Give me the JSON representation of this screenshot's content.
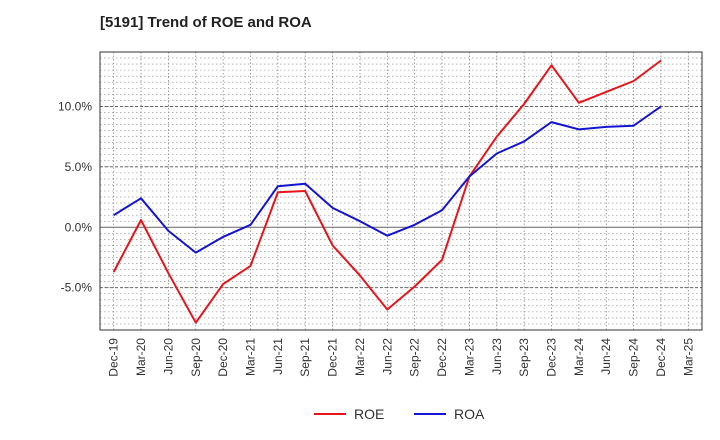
{
  "chart_data": {
    "type": "line",
    "title": "[5191]  Trend of ROE and ROA",
    "xlabel": "",
    "ylabel": "",
    "x": [
      "Dec-19",
      "Mar-20",
      "Jun-20",
      "Sep-20",
      "Dec-20",
      "Mar-21",
      "Jun-21",
      "Sep-21",
      "Dec-21",
      "Mar-22",
      "Jun-22",
      "Sep-22",
      "Dec-22",
      "Mar-23",
      "Jun-23",
      "Sep-23",
      "Dec-23",
      "Mar-24",
      "Jun-24",
      "Sep-24",
      "Dec-24",
      "Mar-25"
    ],
    "ylim": [
      -8.5,
      14.5
    ],
    "yticks": [
      -5,
      0,
      5,
      10
    ],
    "ytick_labels": [
      "-5.0%",
      "0.0%",
      "5.0%",
      "10.0%"
    ],
    "grid": true,
    "legend_position": "bottom-center",
    "series": [
      {
        "name": "ROE",
        "color": "#e8141a",
        "values": [
          -3.7,
          0.6,
          -3.8,
          -7.9,
          -4.7,
          -3.2,
          2.9,
          3.0,
          -1.5,
          -4.0,
          -6.8,
          -4.9,
          -2.7,
          4.2,
          7.5,
          10.2,
          13.4,
          10.3,
          11.2,
          12.1,
          13.8,
          null
        ]
      },
      {
        "name": "ROA",
        "color": "#1414d2",
        "values": [
          1.0,
          2.4,
          -0.3,
          -2.1,
          -0.8,
          0.2,
          3.4,
          3.6,
          1.6,
          0.5,
          -0.7,
          0.2,
          1.4,
          4.2,
          6.1,
          7.1,
          8.7,
          8.1,
          8.3,
          8.4,
          10.0,
          null
        ]
      }
    ]
  }
}
